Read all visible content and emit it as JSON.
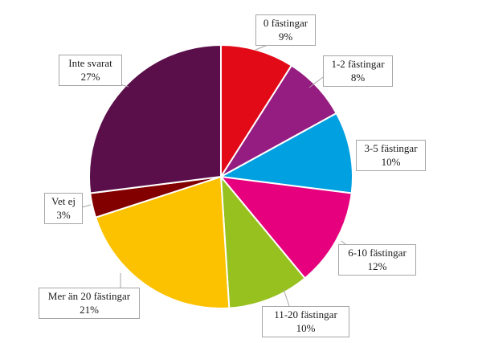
{
  "chart_data": {
    "type": "pie",
    "title": "",
    "unit": "%",
    "slices": [
      {
        "label": "0 fästingar",
        "value": 9,
        "display": "9%",
        "color": "#e30a17"
      },
      {
        "label": "1-2 fästingar",
        "value": 8,
        "display": "8%",
        "color": "#951c80"
      },
      {
        "label": "3-5 fästingar",
        "value": 10,
        "display": "10%",
        "color": "#00a0e1"
      },
      {
        "label": "6-10 fästingar",
        "value": 12,
        "display": "12%",
        "color": "#e6007e"
      },
      {
        "label": "11-20 fästingar",
        "value": 10,
        "display": "10%",
        "color": "#97c11f"
      },
      {
        "label": "Mer än 20 fästingar",
        "value": 21,
        "display": "21%",
        "color": "#fcc200"
      },
      {
        "label": "Vet ej",
        "value": 3,
        "display": "3%",
        "color": "#830000"
      },
      {
        "label": "Inte svarat",
        "value": 27,
        "display": "27%",
        "color": "#5a0f4a"
      }
    ],
    "start_angle": "12 o'clock",
    "direction": "clockwise",
    "labels": "callout boxes outside the pie with leader lines",
    "legend": "none"
  }
}
